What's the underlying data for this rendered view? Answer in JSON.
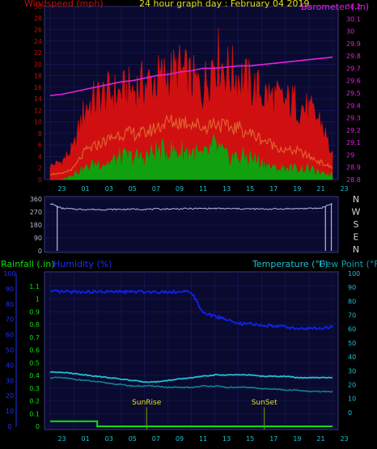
{
  "header": {
    "title": "24 hour graph day : February 04 2019",
    "left_label": "Windspeed (mph)",
    "right_label": "Barometer (.in)"
  },
  "direction": {
    "labels": [
      "N",
      "W",
      "S",
      "E",
      "N"
    ]
  },
  "bottom": {
    "rain_label": "Rainfall (.in)",
    "hum_label": "Humidity (%)",
    "temp_label": "Temperature (°F)",
    "dew_label": "Dew Point (°F)",
    "sunrise": "SunRise",
    "sunset": "SunSet"
  },
  "colors": {
    "panel": "#0a0a30",
    "grid": "#1a1a5a",
    "wind": "#d01010",
    "gust": "#e06030",
    "avg": "#10a010",
    "baro": "#e020e0",
    "dir": "#b8b8d8",
    "humidity": "#1020e0",
    "temp": "#20c0d0",
    "dew": "#108090",
    "rain": "#10e010",
    "sun_line": "#80a000"
  },
  "chart_data": [
    {
      "type": "line",
      "title": "24 hour graph day : February 04 2019",
      "x_ticks": [
        "23",
        "01",
        "03",
        "05",
        "07",
        "09",
        "11",
        "13",
        "15",
        "17",
        "19",
        "21",
        "23"
      ],
      "left_axis": {
        "label": "Windspeed (mph)",
        "ylim": [
          0,
          30
        ],
        "ticks": [
          0,
          2,
          4,
          6,
          8,
          10,
          12,
          14,
          16,
          18,
          20,
          22,
          24,
          26,
          28,
          30
        ]
      },
      "right_axis": {
        "label": "Barometer (.in)",
        "ylim": [
          28.8,
          30.2
        ],
        "ticks": [
          28.8,
          28.9,
          29,
          29.1,
          29.2,
          29.3,
          29.4,
          29.5,
          29.6,
          29.7,
          29.8,
          29.9,
          30,
          30.1,
          30.2
        ]
      },
      "hours": [
        0,
        1,
        2,
        3,
        4,
        5,
        6,
        7,
        8,
        9,
        10,
        11,
        12,
        13,
        14,
        15,
        16,
        17,
        18,
        19,
        20,
        21,
        22,
        23,
        24
      ],
      "series": [
        {
          "name": "Gust",
          "values": [
            3,
            4,
            7,
            16,
            18,
            19,
            19,
            20,
            21,
            22,
            23,
            24,
            22,
            20,
            28,
            24,
            23,
            21,
            19,
            18,
            17,
            17,
            15,
            13,
            5
          ]
        },
        {
          "name": "Average speed",
          "values": [
            1,
            1,
            2,
            5,
            6,
            7,
            8,
            8,
            8,
            9,
            10,
            10,
            10,
            9,
            10,
            9,
            9,
            8,
            7,
            6,
            5,
            5,
            4,
            3,
            2
          ]
        },
        {
          "name": "Wind speed",
          "values": [
            0,
            0,
            1,
            2,
            3,
            3,
            4,
            4,
            4,
            5,
            5,
            5,
            5,
            4,
            6,
            4,
            4,
            4,
            3,
            2,
            2,
            2,
            2,
            1,
            1
          ]
        },
        {
          "name": "Barometer",
          "values": [
            29.48,
            29.49,
            29.51,
            29.53,
            29.55,
            29.57,
            29.59,
            29.6,
            29.62,
            29.64,
            29.65,
            29.67,
            29.68,
            29.7,
            29.7,
            29.71,
            29.72,
            29.72,
            29.73,
            29.74,
            29.75,
            29.76,
            29.77,
            29.78,
            29.79
          ]
        }
      ]
    },
    {
      "type": "line",
      "y_ticks": [
        "360",
        "270",
        "180",
        "90",
        "0"
      ],
      "hours": [
        0,
        1,
        2,
        3,
        4,
        5,
        6,
        7,
        8,
        9,
        10,
        11,
        12,
        13,
        14,
        15,
        16,
        17,
        18,
        19,
        20,
        21,
        22,
        23,
        24
      ],
      "values": [
        330,
        295,
        290,
        288,
        287,
        287,
        288,
        289,
        289,
        290,
        291,
        292,
        293,
        294,
        294,
        293,
        292,
        291,
        290,
        291,
        292,
        293,
        294,
        296,
        330
      ],
      "drops_to": 0,
      "drop_hours": [
        0.6,
        23.4,
        23.9
      ]
    },
    {
      "type": "line",
      "x_ticks": [
        "23",
        "01",
        "03",
        "05",
        "07",
        "09",
        "11",
        "13",
        "15",
        "17",
        "19",
        "21",
        "23"
      ],
      "left_axis": {
        "label": "Rainfall (.in)",
        "ylim": [
          0,
          1.2
        ],
        "ticks": [
          0,
          0.1,
          0.2,
          0.3,
          0.4,
          0.5,
          0.6,
          0.7,
          0.8,
          0.9,
          1,
          1.1
        ]
      },
      "humidity_axis": {
        "label": "Humidity (%)",
        "ylim": [
          0,
          100
        ],
        "ticks": [
          0,
          10,
          20,
          30,
          40,
          50,
          60,
          70,
          80,
          90,
          100
        ]
      },
      "right_axis": {
        "label": "Temperature (°F)",
        "ylim": [
          -10,
          100
        ],
        "ticks": [
          0,
          10,
          20,
          30,
          40,
          50,
          60,
          70,
          80,
          90,
          100
        ]
      },
      "hours": [
        0,
        1,
        2,
        3,
        4,
        5,
        6,
        7,
        8,
        9,
        10,
        11,
        12,
        13,
        14,
        15,
        16,
        17,
        18,
        19,
        20,
        21,
        22,
        23,
        24
      ],
      "series": [
        {
          "name": "Humidity",
          "values": [
            88,
            88,
            88,
            88,
            88,
            88,
            88,
            88,
            88,
            88,
            88,
            88,
            88,
            74,
            72,
            70,
            67,
            67,
            66,
            66,
            65,
            64,
            64,
            64,
            65
          ]
        },
        {
          "name": "Temperature",
          "values": [
            29,
            29,
            28,
            27,
            26,
            25,
            24,
            23,
            22,
            22,
            23,
            24,
            25,
            26,
            27,
            27,
            27,
            27,
            26,
            26,
            26,
            25,
            25,
            25,
            25
          ]
        },
        {
          "name": "Dew Point",
          "values": [
            25,
            25,
            24,
            23,
            22,
            21,
            20,
            19,
            19,
            19,
            18,
            18,
            18,
            19,
            19,
            18,
            18,
            18,
            17,
            17,
            16,
            16,
            15,
            15,
            15
          ]
        },
        {
          "name": "Rainfall",
          "values": [
            0.04,
            0.04,
            0.04,
            0.04,
            0,
            0,
            0,
            0,
            0,
            0,
            0,
            0,
            0,
            0,
            0,
            0,
            0,
            0,
            0,
            0,
            0,
            0,
            0,
            0,
            0
          ]
        }
      ],
      "annotations": [
        {
          "label": "SunRise",
          "hour": 8.2
        },
        {
          "label": "SunSet",
          "hour": 18.2
        }
      ]
    }
  ]
}
